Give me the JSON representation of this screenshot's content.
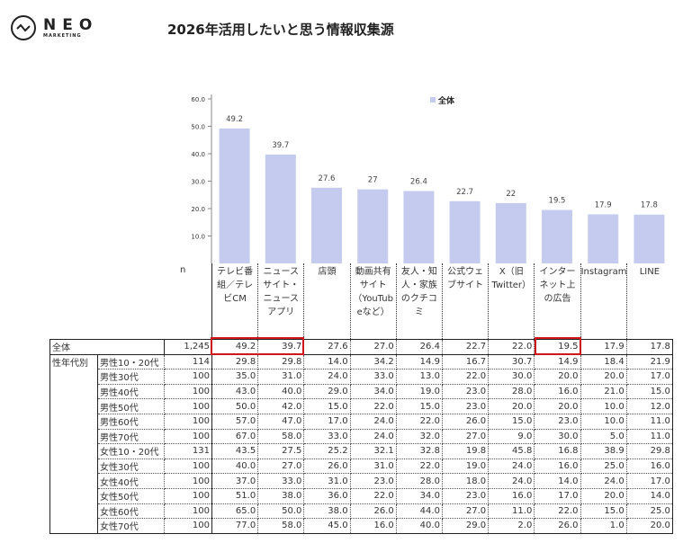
{
  "brand": {
    "name": "NEO",
    "sub": "MARKETING"
  },
  "title": "2026年活用したいと思う情報収集源",
  "colors": {
    "bar": "#c5cbee",
    "highlight": "#d0161b"
  },
  "chart_data": {
    "type": "bar",
    "title": "2026年活用したいと思う情報収集源",
    "categories": [
      "テレビ番組／テレビCM",
      "ニュースサイト・ニュースアプリ",
      "店頭",
      "動画共有サイト（YouTubeなど）",
      "友人・知人・家族のクチコミ",
      "公式ウェブサイト",
      "X（旧Twitter）",
      "インターネット上の広告",
      "Instagram",
      "LINE"
    ],
    "series": [
      {
        "name": "全体",
        "values": [
          49.2,
          39.7,
          27.6,
          27.0,
          26.4,
          22.7,
          22.0,
          19.5,
          17.9,
          17.8
        ]
      }
    ],
    "ylim": [
      0,
      60
    ],
    "yticks": [
      "10.0",
      "20.0",
      "30.0",
      "40.0",
      "50.0",
      "60.0"
    ],
    "legend": "top-center",
    "grid": false
  },
  "table": {
    "n_label": "n",
    "headers": [
      "テレビ番\n組／テレ\nビCM",
      "ニュース\nサイト・\nニュース\nアプリ",
      "店頭",
      "動画共有\nサイト\n（YouTub\neなど）",
      "友人・知\n人・家族\nのクチコ\nミ",
      "公式ウェ\nブサイト",
      "X（旧\nTwitter）",
      "インター\nネット上\nの広告",
      "Instagram",
      "LINE"
    ],
    "total": {
      "label": "全体",
      "n": "1,245",
      "values": [
        "49.2",
        "39.7",
        "27.6",
        "27.0",
        "26.4",
        "22.7",
        "22.0",
        "19.5",
        "17.9",
        "17.8"
      ]
    },
    "group_label": "性年代別",
    "rows": [
      {
        "label": "男性10・20代",
        "n": "114",
        "values": [
          "29.8",
          "29.8",
          "14.0",
          "34.2",
          "14.9",
          "16.7",
          "30.7",
          "14.9",
          "18.4",
          "21.9"
        ]
      },
      {
        "label": "男性30代",
        "n": "100",
        "values": [
          "35.0",
          "31.0",
          "24.0",
          "33.0",
          "13.0",
          "22.0",
          "30.0",
          "20.0",
          "20.0",
          "17.0"
        ]
      },
      {
        "label": "男性40代",
        "n": "100",
        "values": [
          "43.0",
          "40.0",
          "29.0",
          "34.0",
          "19.0",
          "23.0",
          "28.0",
          "16.0",
          "21.0",
          "15.0"
        ]
      },
      {
        "label": "男性50代",
        "n": "100",
        "values": [
          "50.0",
          "42.0",
          "15.0",
          "22.0",
          "15.0",
          "23.0",
          "20.0",
          "20.0",
          "10.0",
          "12.0"
        ]
      },
      {
        "label": "男性60代",
        "n": "100",
        "values": [
          "57.0",
          "47.0",
          "17.0",
          "24.0",
          "22.0",
          "26.0",
          "15.0",
          "23.0",
          "10.0",
          "11.0"
        ]
      },
      {
        "label": "男性70代",
        "n": "100",
        "values": [
          "67.0",
          "58.0",
          "33.0",
          "24.0",
          "32.0",
          "27.0",
          "9.0",
          "30.0",
          "5.0",
          "11.0"
        ]
      },
      {
        "label": "女性10・20代",
        "n": "131",
        "values": [
          "43.5",
          "27.5",
          "25.2",
          "32.1",
          "32.8",
          "19.8",
          "45.8",
          "16.8",
          "38.9",
          "29.8"
        ]
      },
      {
        "label": "女性30代",
        "n": "100",
        "values": [
          "40.0",
          "27.0",
          "26.0",
          "31.0",
          "22.0",
          "19.0",
          "24.0",
          "16.0",
          "25.0",
          "16.0"
        ]
      },
      {
        "label": "女性40代",
        "n": "100",
        "values": [
          "37.0",
          "33.0",
          "31.0",
          "23.0",
          "28.0",
          "18.0",
          "24.0",
          "14.0",
          "24.0",
          "17.0"
        ]
      },
      {
        "label": "女性50代",
        "n": "100",
        "values": [
          "51.0",
          "38.0",
          "36.0",
          "22.0",
          "34.0",
          "23.0",
          "16.0",
          "17.0",
          "20.0",
          "14.0"
        ]
      },
      {
        "label": "女性60代",
        "n": "100",
        "values": [
          "65.0",
          "50.0",
          "38.0",
          "26.0",
          "44.0",
          "27.0",
          "11.0",
          "22.0",
          "15.0",
          "25.0"
        ]
      },
      {
        "label": "女性70代",
        "n": "100",
        "values": [
          "77.0",
          "58.0",
          "45.0",
          "16.0",
          "40.0",
          "29.0",
          "2.0",
          "26.0",
          "1.0",
          "20.0"
        ]
      }
    ]
  }
}
